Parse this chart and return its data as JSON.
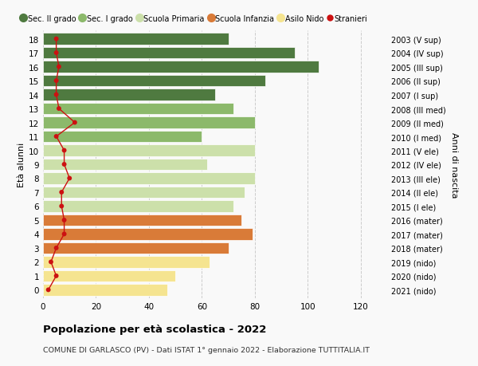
{
  "ages": [
    0,
    1,
    2,
    3,
    4,
    5,
    6,
    7,
    8,
    9,
    10,
    11,
    12,
    13,
    14,
    15,
    16,
    17,
    18
  ],
  "years": [
    "2021 (nido)",
    "2020 (nido)",
    "2019 (nido)",
    "2018 (mater)",
    "2017 (mater)",
    "2016 (mater)",
    "2015 (I ele)",
    "2014 (II ele)",
    "2013 (III ele)",
    "2012 (IV ele)",
    "2011 (V ele)",
    "2010 (I med)",
    "2009 (II med)",
    "2008 (III med)",
    "2007 (I sup)",
    "2006 (II sup)",
    "2005 (III sup)",
    "2004 (IV sup)",
    "2003 (V sup)"
  ],
  "values": [
    47,
    50,
    63,
    70,
    79,
    75,
    72,
    76,
    80,
    62,
    80,
    60,
    80,
    72,
    65,
    84,
    104,
    95,
    70
  ],
  "bar_colors": [
    "#f5e490",
    "#f5e490",
    "#f5e490",
    "#d97b38",
    "#d97b38",
    "#d97b38",
    "#cce0aa",
    "#cce0aa",
    "#cce0aa",
    "#cce0aa",
    "#cce0aa",
    "#8cb96b",
    "#8cb96b",
    "#8cb96b",
    "#4f7a40",
    "#4f7a40",
    "#4f7a40",
    "#4f7a40",
    "#4f7a40"
  ],
  "stranieri": [
    2,
    5,
    3,
    5,
    8,
    8,
    7,
    7,
    10,
    8,
    8,
    5,
    12,
    6,
    5,
    5,
    6,
    5,
    5
  ],
  "title_main": "Popolazione per età scolastica - 2022",
  "title_sub": "COMUNE DI GARLASCO (PV) - Dati ISTAT 1° gennaio 2022 - Elaborazione TUTTITALIA.IT",
  "ylabel_left": "Età alunni",
  "ylabel_right": "Anni di nascita",
  "xlim": [
    0,
    130
  ],
  "xticks": [
    0,
    20,
    40,
    60,
    80,
    100,
    120
  ],
  "legend_labels": [
    "Sec. II grado",
    "Sec. I grado",
    "Scuola Primaria",
    "Scuola Infanzia",
    "Asilo Nido",
    "Stranieri"
  ],
  "legend_colors": [
    "#4f7a40",
    "#8cb96b",
    "#cce0aa",
    "#d97b38",
    "#f5e490",
    "#cc1111"
  ],
  "bg_color": "#f9f9f9",
  "grid_color": "#cccccc",
  "bar_height": 0.82
}
